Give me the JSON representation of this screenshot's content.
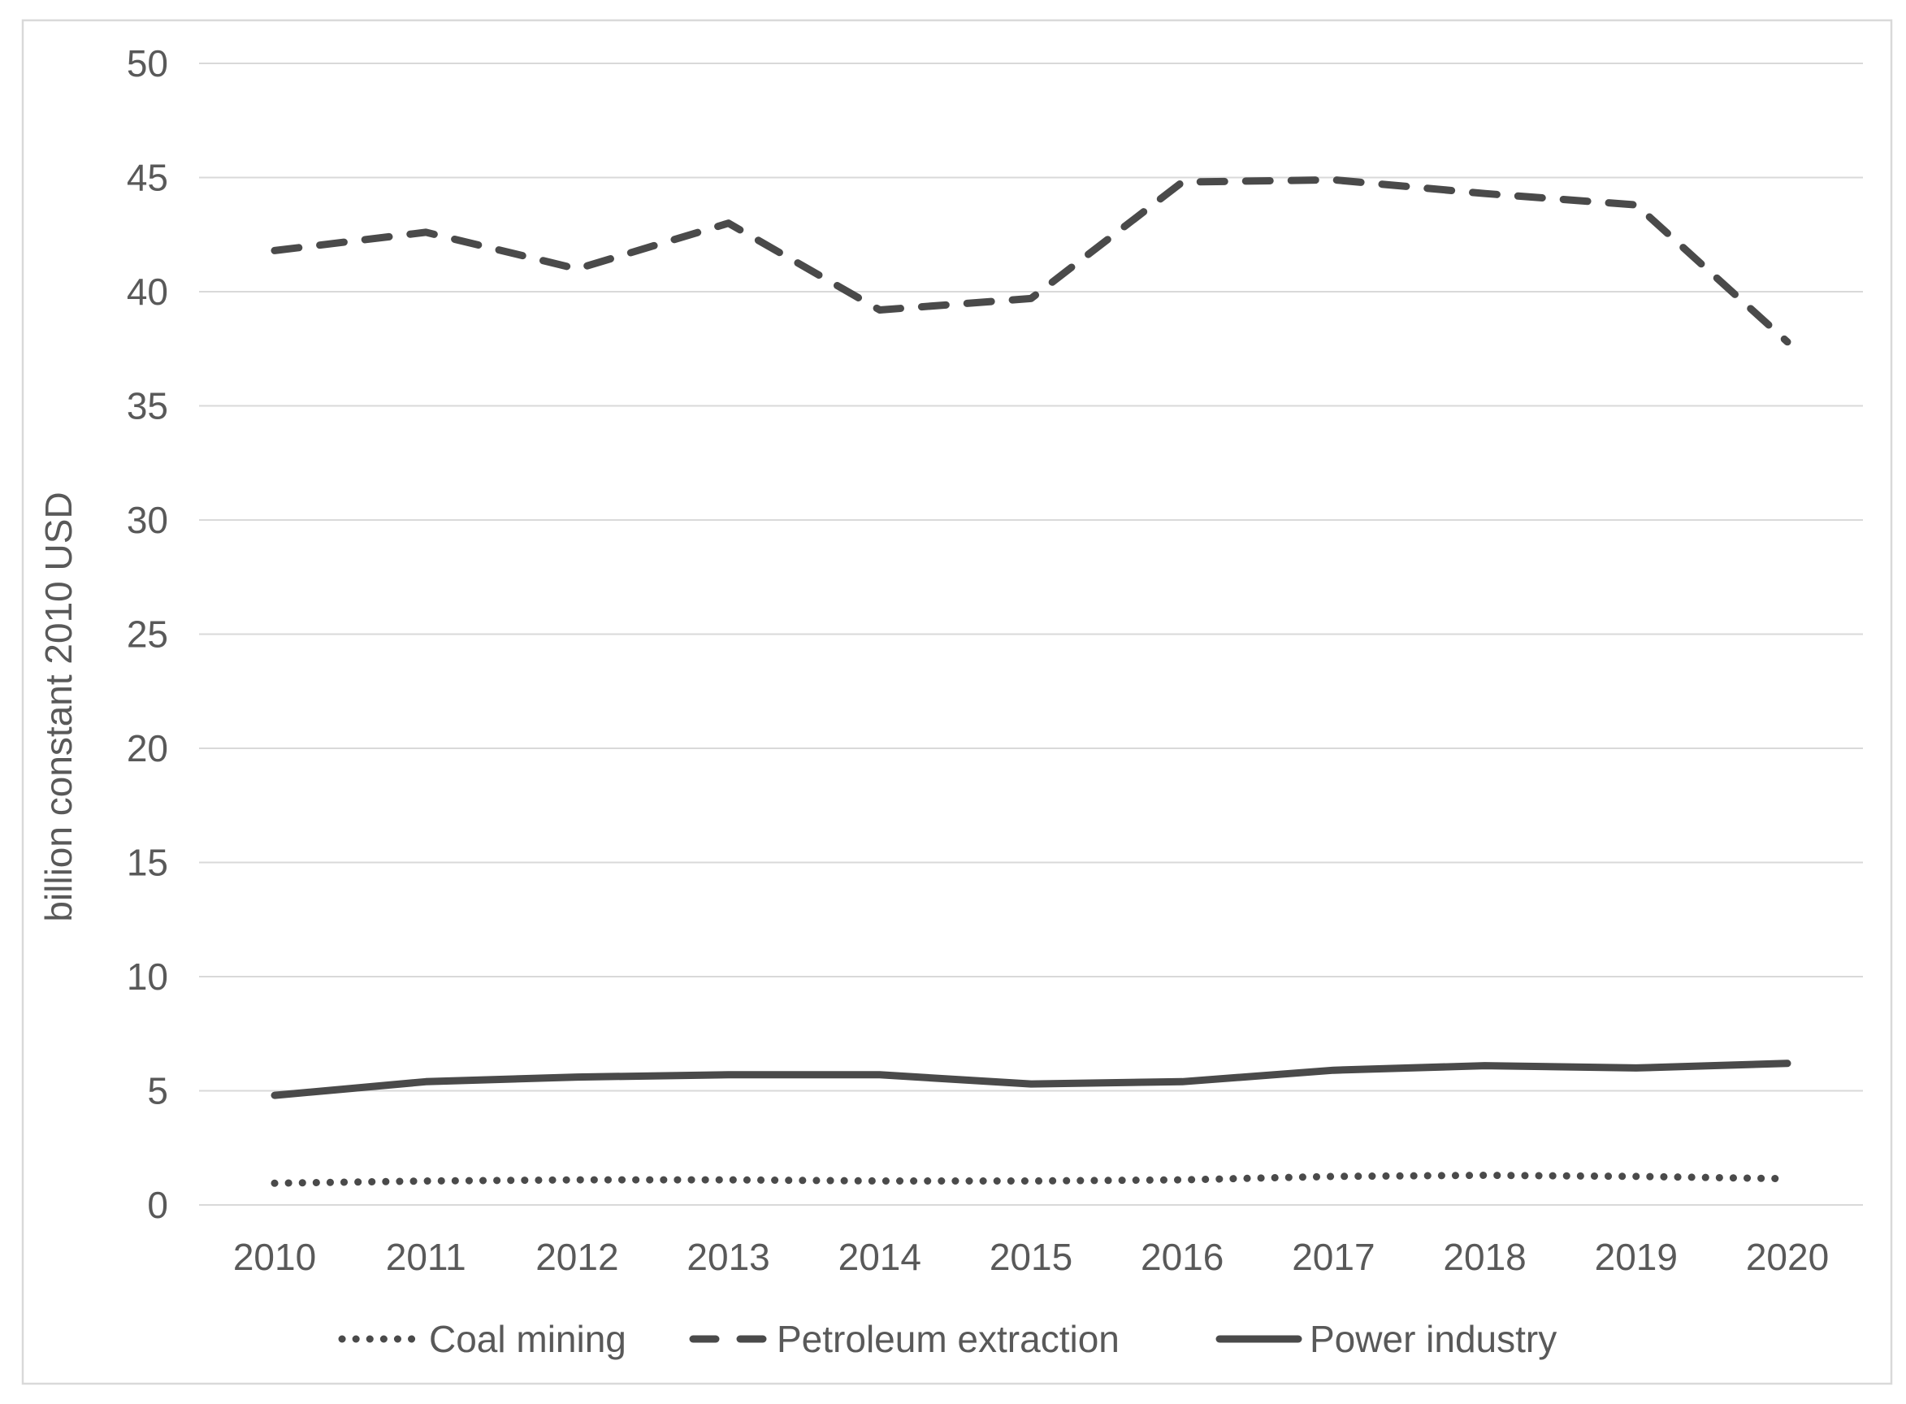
{
  "chart_data": {
    "type": "line",
    "title": "",
    "x": [
      "2010",
      "2011",
      "2012",
      "2013",
      "2014",
      "2015",
      "2016",
      "2017",
      "2018",
      "2019",
      "2020"
    ],
    "xlabel": "",
    "ylabel": "billion constant 2010 USD",
    "ylim": [
      0,
      50
    ],
    "ytick_step": 5,
    "ytick_labels": [
      "0",
      "5",
      "10",
      "15",
      "20",
      "25",
      "30",
      "35",
      "40",
      "45",
      "50"
    ],
    "grid": "horizontal-only",
    "legend_position": "bottom",
    "series": [
      {
        "name": "Coal mining",
        "line_style": "dotted",
        "values": [
          0.95,
          1.05,
          1.1,
          1.1,
          1.05,
          1.05,
          1.1,
          1.25,
          1.3,
          1.25,
          1.15
        ]
      },
      {
        "name": "Petroleum extraction",
        "line_style": "dashed",
        "values": [
          41.8,
          42.6,
          41.0,
          43.0,
          39.2,
          39.7,
          44.8,
          44.9,
          44.3,
          43.8,
          37.8
        ]
      },
      {
        "name": "Power industry",
        "line_style": "solid",
        "values": [
          4.8,
          5.4,
          5.6,
          5.7,
          5.7,
          5.3,
          5.4,
          5.9,
          6.1,
          6.0,
          6.2
        ]
      }
    ],
    "colors": {
      "line": "#4a4a4a",
      "grid": "#d9d9d9",
      "text": "#595959",
      "border": "#d9d9d9",
      "background": "#ffffff"
    }
  }
}
